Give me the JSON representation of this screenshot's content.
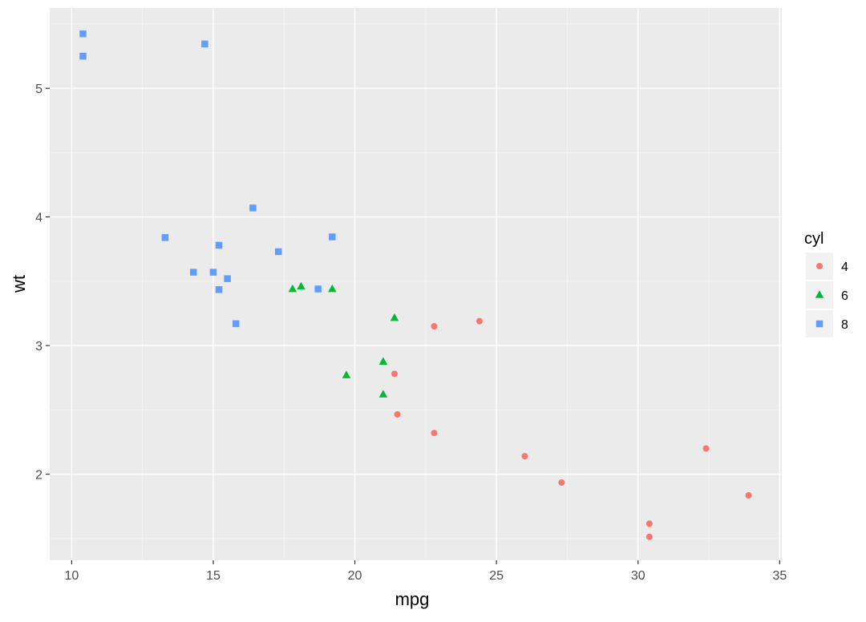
{
  "chart_data": {
    "type": "scatter",
    "xlabel": "mpg",
    "ylabel": "wt",
    "xlim": [
      9.225,
      35.075
    ],
    "ylim": [
      1.3305,
      5.6245
    ],
    "x_ticks": [
      10,
      15,
      20,
      25,
      30,
      35
    ],
    "y_ticks": [
      2,
      3,
      4,
      5
    ],
    "grid": true,
    "legend": {
      "title": "cyl",
      "placement": "right"
    },
    "series": [
      {
        "name": "4",
        "marker": "circle",
        "color": "#F8766D",
        "points": [
          [
            22.8,
            2.32
          ],
          [
            24.4,
            3.19
          ],
          [
            22.8,
            3.15
          ],
          [
            32.4,
            2.2
          ],
          [
            30.4,
            1.615
          ],
          [
            33.9,
            1.835
          ],
          [
            21.5,
            2.465
          ],
          [
            27.3,
            1.935
          ],
          [
            26.0,
            2.14
          ],
          [
            30.4,
            1.513
          ],
          [
            21.4,
            2.78
          ]
        ]
      },
      {
        "name": "6",
        "marker": "triangle",
        "color": "#00BA38",
        "points": [
          [
            21.0,
            2.62
          ],
          [
            21.0,
            2.875
          ],
          [
            21.4,
            3.215
          ],
          [
            18.1,
            3.46
          ],
          [
            19.2,
            3.44
          ],
          [
            17.8,
            3.44
          ],
          [
            19.7,
            2.77
          ]
        ]
      },
      {
        "name": "8",
        "marker": "square",
        "color": "#619CFF",
        "points": [
          [
            18.7,
            3.44
          ],
          [
            14.3,
            3.57
          ],
          [
            16.4,
            4.07
          ],
          [
            17.3,
            3.73
          ],
          [
            15.2,
            3.78
          ],
          [
            10.4,
            5.25
          ],
          [
            10.4,
            5.424
          ],
          [
            14.7,
            5.345
          ],
          [
            15.5,
            3.52
          ],
          [
            15.2,
            3.435
          ],
          [
            13.3,
            3.84
          ],
          [
            19.2,
            3.845
          ],
          [
            15.8,
            3.17
          ],
          [
            15.0,
            3.57
          ]
        ]
      }
    ]
  },
  "colors": {
    "panel_background": "#EBEBEB",
    "grid_major": "#FFFFFF",
    "axis_text": "#4D4D4D",
    "axis_title": "#000000"
  }
}
